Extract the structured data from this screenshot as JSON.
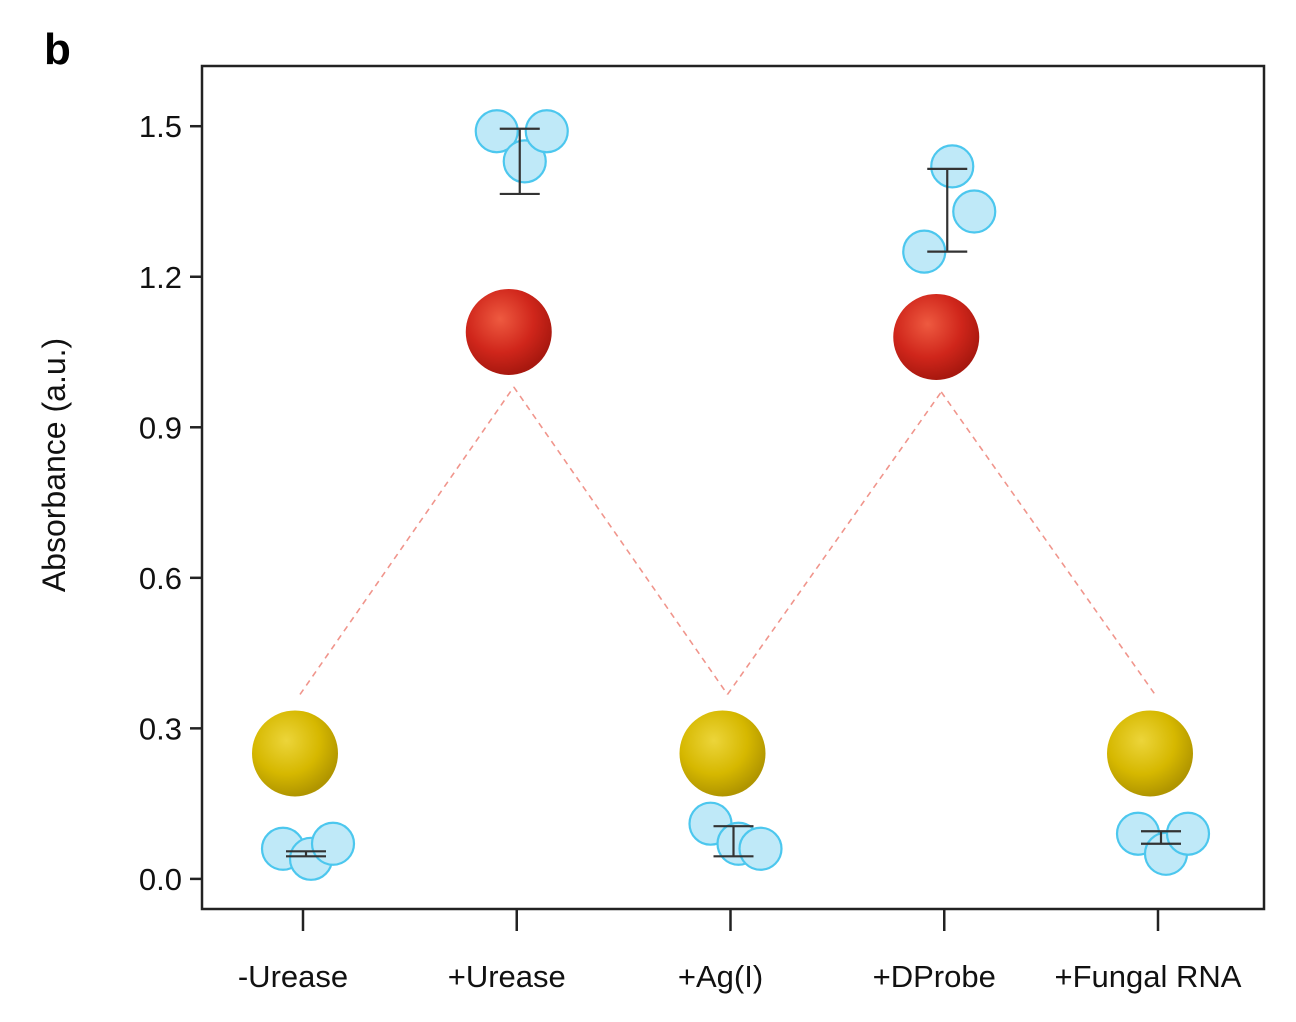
{
  "panel_label": "b",
  "colors": {
    "replicate_fill": "#bfe9f8",
    "replicate_stroke": "#4cc7ee",
    "red_sample": "#d0261b",
    "yellow_sample": "#d6b800",
    "connector": "#ef8a80",
    "error_bar": "#333333",
    "axis": "#222222"
  },
  "chart_data": {
    "type": "scatter",
    "ylabel": "Absorbance (a.u.)",
    "xlabel": "",
    "ylim": [
      -0.06,
      1.62
    ],
    "yticks": [
      "0.0",
      "0.3",
      "0.6",
      "0.9",
      "1.2",
      "1.5"
    ],
    "categories": [
      "-Urease",
      "+Urease",
      "+Ag(I)",
      "+DProbe",
      "+Fungal RNA"
    ],
    "grid": false,
    "replicates": [
      {
        "category": "-Urease",
        "values": [
          0.06,
          0.04,
          0.07
        ]
      },
      {
        "category": "+Urease",
        "values": [
          1.49,
          1.43,
          1.49
        ]
      },
      {
        "category": "+Ag(I)",
        "values": [
          0.11,
          0.07,
          0.06
        ]
      },
      {
        "category": "+DProbe",
        "values": [
          1.25,
          1.42,
          1.33
        ]
      },
      {
        "category": "+Fungal RNA",
        "values": [
          0.09,
          0.05,
          0.09
        ]
      }
    ],
    "error_bars": [
      {
        "category": "-Urease",
        "low": 0.045,
        "high": 0.055
      },
      {
        "category": "+Urease",
        "low": 1.365,
        "high": 1.495
      },
      {
        "category": "+Ag(I)",
        "low": 0.045,
        "high": 0.105
      },
      {
        "category": "+DProbe",
        "low": 1.25,
        "high": 1.415
      },
      {
        "category": "+Fungal RNA",
        "low": 0.07,
        "high": 0.095
      }
    ],
    "sample_photos": [
      {
        "category": "-Urease",
        "color": "yellow",
        "value": 0.25
      },
      {
        "category": "+Urease",
        "color": "red",
        "value": 1.09
      },
      {
        "category": "+Ag(I)",
        "color": "yellow",
        "value": 0.25
      },
      {
        "category": "+DProbe",
        "color": "red",
        "value": 1.08
      },
      {
        "category": "+Fungal RNA",
        "color": "yellow",
        "value": 0.25
      }
    ]
  }
}
